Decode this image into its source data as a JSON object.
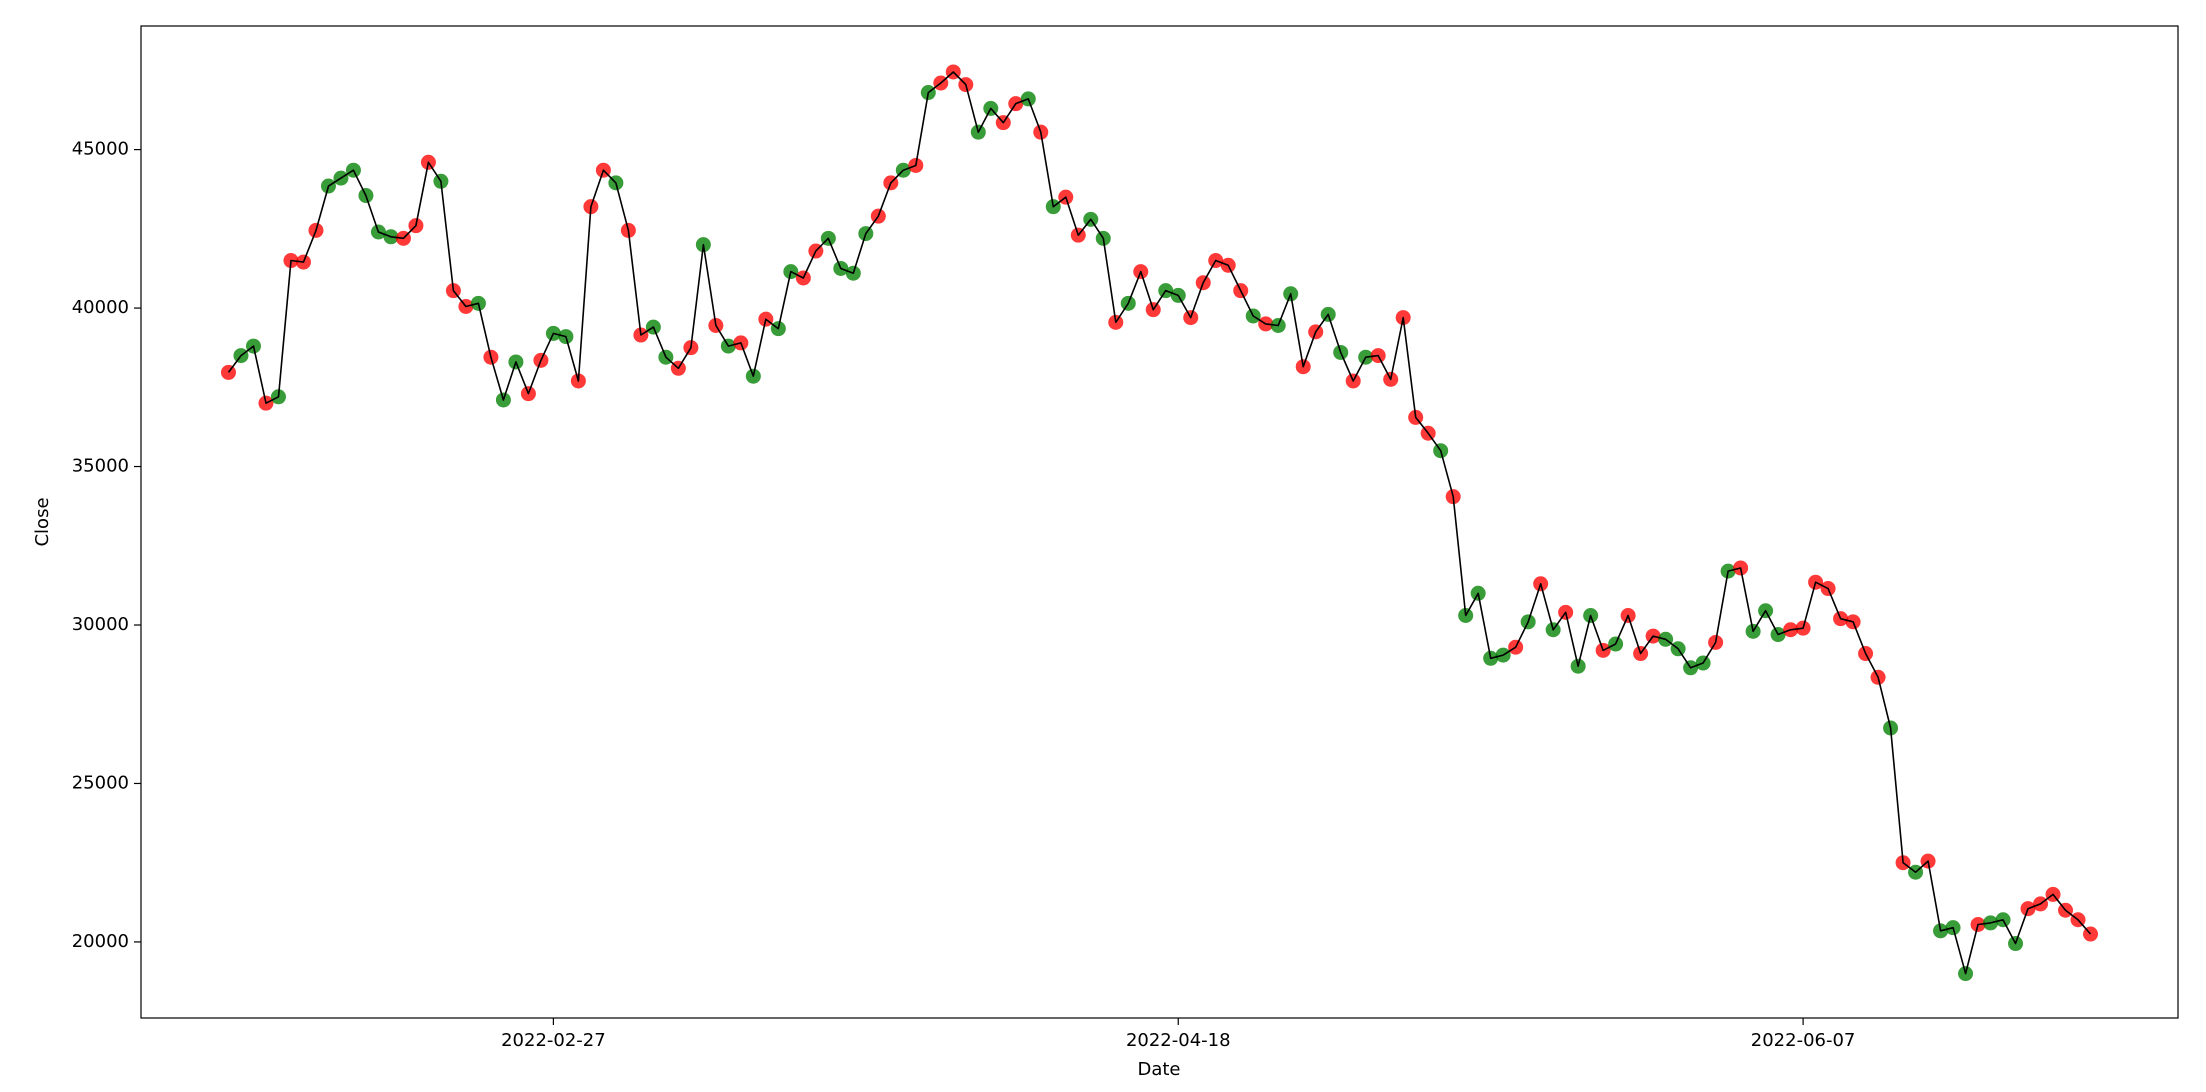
{
  "chart_data": {
    "type": "scatter-line",
    "x_label": "Date",
    "y_label": "Close",
    "x": [
      "2022-02-01",
      "2022-02-02",
      "2022-02-03",
      "2022-02-04",
      "2022-02-05",
      "2022-02-06",
      "2022-02-07",
      "2022-02-08",
      "2022-02-09",
      "2022-02-10",
      "2022-02-11",
      "2022-02-12",
      "2022-02-13",
      "2022-02-14",
      "2022-02-15",
      "2022-02-16",
      "2022-02-17",
      "2022-02-18",
      "2022-02-19",
      "2022-02-20",
      "2022-02-21",
      "2022-02-22",
      "2022-02-23",
      "2022-02-24",
      "2022-02-25",
      "2022-02-26",
      "2022-02-27",
      "2022-02-28",
      "2022-03-01",
      "2022-03-02",
      "2022-03-03",
      "2022-03-04",
      "2022-03-05",
      "2022-03-06",
      "2022-03-07",
      "2022-03-08",
      "2022-03-09",
      "2022-03-10",
      "2022-03-11",
      "2022-03-12",
      "2022-03-13",
      "2022-03-14",
      "2022-03-15",
      "2022-03-16",
      "2022-03-17",
      "2022-03-18",
      "2022-03-19",
      "2022-03-20",
      "2022-03-21",
      "2022-03-22",
      "2022-03-23",
      "2022-03-24",
      "2022-03-25",
      "2022-03-26",
      "2022-03-27",
      "2022-03-28",
      "2022-03-29",
      "2022-03-30",
      "2022-03-31",
      "2022-04-01",
      "2022-04-02",
      "2022-04-03",
      "2022-04-04",
      "2022-04-05",
      "2022-04-06",
      "2022-04-07",
      "2022-04-08",
      "2022-04-09",
      "2022-04-10",
      "2022-04-11",
      "2022-04-12",
      "2022-04-13",
      "2022-04-14",
      "2022-04-15",
      "2022-04-16",
      "2022-04-17",
      "2022-04-18",
      "2022-04-19",
      "2022-04-20",
      "2022-04-21",
      "2022-04-22",
      "2022-04-23",
      "2022-04-24",
      "2022-04-25",
      "2022-04-26",
      "2022-04-27",
      "2022-04-28",
      "2022-04-29",
      "2022-04-30",
      "2022-05-01",
      "2022-05-02",
      "2022-05-03",
      "2022-05-04",
      "2022-05-05",
      "2022-05-06",
      "2022-05-07",
      "2022-05-08",
      "2022-05-09",
      "2022-05-10",
      "2022-05-11",
      "2022-05-12",
      "2022-05-13",
      "2022-05-14",
      "2022-05-15",
      "2022-05-16",
      "2022-05-17",
      "2022-05-18",
      "2022-05-19",
      "2022-05-20",
      "2022-05-21",
      "2022-05-22",
      "2022-05-23",
      "2022-05-24",
      "2022-05-25",
      "2022-05-26",
      "2022-05-27",
      "2022-05-28",
      "2022-05-29",
      "2022-05-30",
      "2022-05-31",
      "2022-06-01",
      "2022-06-02",
      "2022-06-03",
      "2022-06-04",
      "2022-06-05",
      "2022-06-06",
      "2022-06-07",
      "2022-06-08",
      "2022-06-09",
      "2022-06-10",
      "2022-06-11",
      "2022-06-12",
      "2022-06-13",
      "2022-06-14",
      "2022-06-15",
      "2022-06-16",
      "2022-06-17",
      "2022-06-18",
      "2022-06-19",
      "2022-06-20",
      "2022-06-21",
      "2022-06-22",
      "2022-06-23",
      "2022-06-24",
      "2022-06-25",
      "2022-06-26",
      "2022-06-27",
      "2022-06-28",
      "2022-06-29",
      "2022-06-30"
    ],
    "values": [
      37970,
      38500,
      38800,
      37000,
      37200,
      41500,
      41450,
      42450,
      43850,
      44100,
      44350,
      43550,
      42400,
      42250,
      42200,
      42600,
      44600,
      44000,
      40550,
      40050,
      40150,
      38450,
      37100,
      38300,
      37300,
      38350,
      39200,
      39100,
      37700,
      43200,
      44350,
      43950,
      42450,
      39150,
      39400,
      38450,
      38100,
      38750,
      42000,
      39450,
      38800,
      38900,
      37850,
      39650,
      39350,
      41150,
      40950,
      41800,
      42200,
      41250,
      41100,
      42350,
      42900,
      43950,
      44350,
      44500,
      46800,
      47100,
      47450,
      47050,
      45550,
      46300,
      45850,
      46450,
      46600,
      45550,
      43200,
      43500,
      42300,
      42800,
      42200,
      39550,
      40150,
      41150,
      39950,
      40550,
      40400,
      39700,
      40800,
      41500,
      41350,
      40550,
      39750,
      39500,
      39450,
      40450,
      38150,
      39250,
      39800,
      38600,
      37700,
      38450,
      38500,
      37750,
      39700,
      36550,
      36050,
      35500,
      34050,
      30300,
      31000,
      28950,
      29050,
      29300,
      30100,
      31300,
      29850,
      30400,
      28700,
      30300,
      29200,
      29400,
      30300,
      29100,
      29650,
      29550,
      29250,
      28650,
      28800,
      29450,
      31700,
      31800,
      29800,
      30450,
      29700,
      29850,
      29900,
      31350,
      31150,
      30200,
      30100,
      29100,
      28350,
      26750,
      22500,
      22200,
      22550,
      20350,
      20450,
      19000,
      20550,
      20600,
      20700,
      19950,
      21050,
      21200,
      21500,
      21000,
      20700,
      20250
    ],
    "marker_colors": [
      "red",
      "green",
      "green",
      "red",
      "green",
      "red",
      "red",
      "red",
      "green",
      "green",
      "green",
      "green",
      "green",
      "green",
      "red",
      "red",
      "red",
      "green",
      "red",
      "red",
      "green",
      "red",
      "green",
      "green",
      "red",
      "red",
      "green",
      "green",
      "red",
      "red",
      "red",
      "green",
      "red",
      "red",
      "green",
      "green",
      "red",
      "red",
      "green",
      "red",
      "green",
      "red",
      "green",
      "red",
      "green",
      "green",
      "red",
      "red",
      "green",
      "green",
      "green",
      "green",
      "red",
      "red",
      "green",
      "red",
      "green",
      "red",
      "red",
      "red",
      "green",
      "green",
      "red",
      "red",
      "green",
      "red",
      "green",
      "red",
      "red",
      "green",
      "green",
      "red",
      "green",
      "red",
      "red",
      "green",
      "green",
      "red",
      "red",
      "red",
      "red",
      "red",
      "green",
      "red",
      "green",
      "green",
      "red",
      "red",
      "green",
      "green",
      "red",
      "green",
      "red",
      "red",
      "red",
      "red",
      "red",
      "green",
      "red",
      "green",
      "green",
      "green",
      "green",
      "red",
      "green",
      "red",
      "green",
      "red",
      "green",
      "green",
      "red",
      "green",
      "red",
      "red",
      "red",
      "green",
      "green",
      "green",
      "green",
      "red",
      "green",
      "red",
      "green",
      "green",
      "green",
      "red",
      "red",
      "red",
      "red",
      "red",
      "red",
      "red",
      "red",
      "green",
      "red",
      "green",
      "red",
      "green",
      "green",
      "green",
      "red",
      "green",
      "green",
      "green",
      "red",
      "red",
      "red",
      "red",
      "red",
      "red"
    ],
    "line_color": "black",
    "xlim": [
      "2022-01-25",
      "2022-07-07"
    ],
    "xticks": [
      "2022-02-27",
      "2022-04-18",
      "2022-06-07"
    ],
    "ylim": [
      17600,
      48900
    ],
    "yticks": [
      20000,
      25000,
      30000,
      35000,
      40000,
      45000
    ]
  }
}
